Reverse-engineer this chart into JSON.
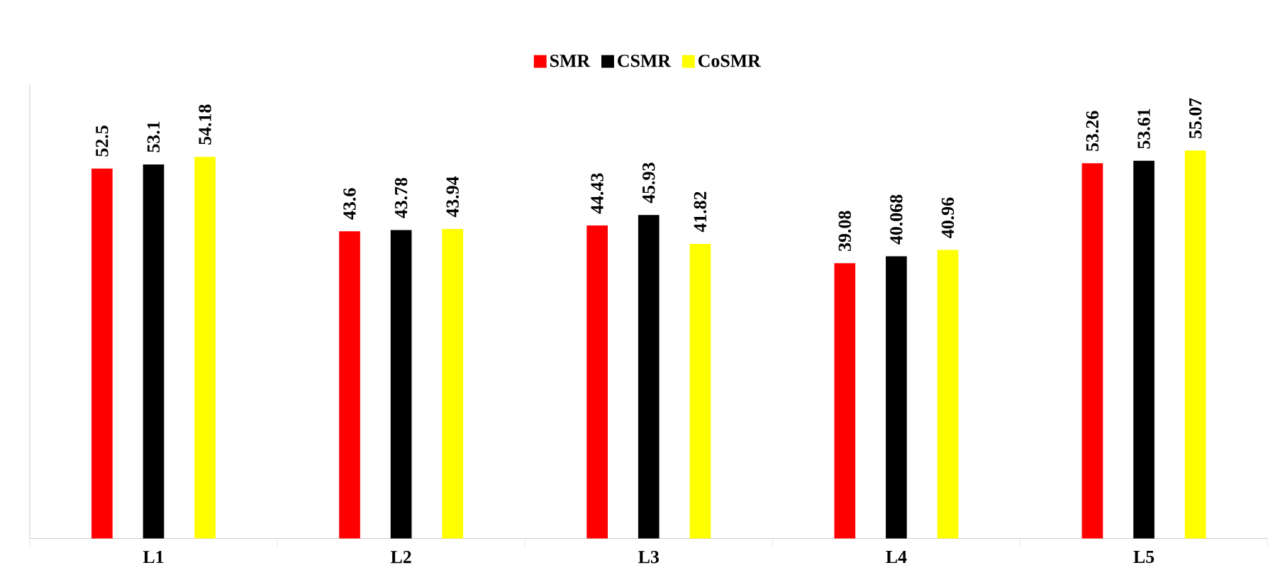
{
  "chart_data": {
    "type": "bar",
    "categories": [
      "L1",
      "L2",
      "L3",
      "L4",
      "L5"
    ],
    "series": [
      {
        "name": "SMR",
        "color": "#ff0000",
        "values": [
          52.5,
          43.6,
          44.43,
          39.08,
          53.26
        ],
        "value_labels": [
          "52.5",
          "43.6",
          "44.43",
          "39.08",
          "53.26"
        ]
      },
      {
        "name": "CSMR",
        "color": "#000000",
        "values": [
          53.1,
          43.78,
          45.93,
          40.068,
          53.61
        ],
        "value_labels": [
          "53.1",
          "43.78",
          "45.93",
          "40.068",
          "53.61"
        ]
      },
      {
        "name": "CoSMR",
        "color": "#ffff00",
        "values": [
          54.18,
          43.94,
          41.82,
          40.96,
          55.07
        ],
        "value_labels": [
          "54.18",
          "43.94",
          "41.82",
          "40.96",
          "55.07"
        ]
      }
    ],
    "legend": "top",
    "grid": false
  }
}
